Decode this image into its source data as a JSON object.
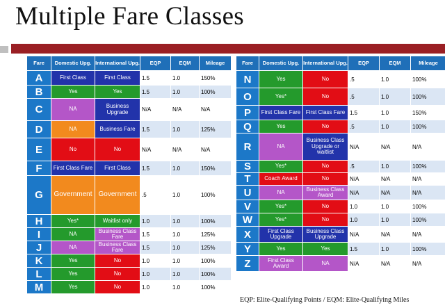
{
  "slide_title": "Multiple Fare Classes",
  "headers": [
    "Fare",
    "Domestic Upg.",
    "International Upg.",
    "EQP",
    "EQM",
    "Mileage"
  ],
  "colors": {
    "blue": "#2233aa",
    "green": "#249a2c",
    "red": "#e20d15",
    "purple": "#b456c8",
    "orange": "#f28a1e",
    "header": "#1f6fb8"
  },
  "left_rows": [
    {
      "fare": "A",
      "dom": "First Class",
      "dc": "blue",
      "intl": "First Class",
      "ic": "blue",
      "eqp": "1.5",
      "eqm": "1.0",
      "mileage": "150%"
    },
    {
      "fare": "B",
      "dom": "Yes",
      "dc": "green",
      "intl": "Yes",
      "ic": "green",
      "eqp": "1.5",
      "eqm": "1.0",
      "mileage": "100%"
    },
    {
      "fare": "C",
      "dom": "NA",
      "dc": "purple",
      "intl": "Business Upgrade",
      "ic": "blue",
      "eqp": "N/A",
      "eqm": "N/A",
      "mileage": "N/A"
    },
    {
      "fare": "D",
      "dom": "NA",
      "dc": "orange",
      "intl": "Business Fare",
      "ic": "blue",
      "eqp": "1.5",
      "eqm": "1.0",
      "mileage": "125%"
    },
    {
      "fare": "E",
      "dom": "No",
      "dc": "red",
      "intl": "No",
      "ic": "red",
      "eqp": "N/A",
      "eqm": "N/A",
      "mileage": "N/A"
    },
    {
      "fare": "F",
      "dom": "First Class Fare",
      "dc": "blue",
      "intl": "First Class",
      "ic": "blue",
      "eqp": "1.5",
      "eqm": "1.0",
      "mileage": "150%"
    },
    {
      "fare": "G",
      "dom": "Government",
      "dc": "orange",
      "intl": "Government",
      "ic": "orange",
      "eqp": ".5",
      "eqm": "1.0",
      "mileage": "100%"
    },
    {
      "fare": "H",
      "dom": "Yes*",
      "dc": "green",
      "intl": "Waitlist only",
      "ic": "green",
      "eqp": "1.0",
      "eqm": "1.0",
      "mileage": "100%"
    },
    {
      "fare": "I",
      "dom": "NA",
      "dc": "green",
      "intl": "Business Class Fare",
      "ic": "purple",
      "eqp": "1.5",
      "eqm": "1.0",
      "mileage": "125%"
    },
    {
      "fare": "J",
      "dom": "NA",
      "dc": "purple",
      "intl": "Business Class Fare",
      "ic": "purple",
      "eqp": "1.5",
      "eqm": "1.0",
      "mileage": "125%"
    },
    {
      "fare": "K",
      "dom": "Yes",
      "dc": "green",
      "intl": "No",
      "ic": "red",
      "eqp": "1.0",
      "eqm": "1.0",
      "mileage": "100%"
    },
    {
      "fare": "L",
      "dom": "Yes",
      "dc": "green",
      "intl": "No",
      "ic": "red",
      "eqp": "1.0",
      "eqm": "1.0",
      "mileage": "100%"
    },
    {
      "fare": "M",
      "dom": "Yes",
      "dc": "green",
      "intl": "No",
      "ic": "red",
      "eqp": "1.0",
      "eqm": "1.0",
      "mileage": "100%"
    }
  ],
  "right_rows": [
    {
      "fare": "N",
      "dom": "Yes",
      "dc": "green",
      "intl": "No",
      "ic": "red",
      "eqp": ".5",
      "eqm": "1.0",
      "mileage": "100%"
    },
    {
      "fare": "O",
      "dom": "Yes*",
      "dc": "green",
      "intl": "No",
      "ic": "red",
      "eqp": ".5",
      "eqm": "1.0",
      "mileage": "100%"
    },
    {
      "fare": "P",
      "dom": "First Class Fare",
      "dc": "blue",
      "intl": "First Class Fare",
      "ic": "blue",
      "eqp": "1.5",
      "eqm": "1.0",
      "mileage": "150%"
    },
    {
      "fare": "Q",
      "dom": "Yes",
      "dc": "green",
      "intl": "No",
      "ic": "red",
      "eqp": ".5",
      "eqm": "1.0",
      "mileage": "100%"
    },
    {
      "fare": "R",
      "dom": "NA",
      "dc": "purple",
      "intl": "Business Class Upgrade or waitlist",
      "ic": "blue",
      "eqp": "N/A",
      "eqm": "N/A",
      "mileage": "N/A"
    },
    {
      "fare": "S",
      "dom": "Yes*",
      "dc": "green",
      "intl": "No",
      "ic": "red",
      "eqp": ".5",
      "eqm": "1.0",
      "mileage": "100%"
    },
    {
      "fare": "T",
      "dom": "Coach Award",
      "dc": "red",
      "intl": "No",
      "ic": "red",
      "eqp": "N/A",
      "eqm": "N/A",
      "mileage": "N/A"
    },
    {
      "fare": "U",
      "dom": "NA",
      "dc": "purple",
      "intl": "Business Class Award",
      "ic": "purple",
      "eqp": "N/A",
      "eqm": "N/A",
      "mileage": "N/A"
    },
    {
      "fare": "V",
      "dom": "Yes*",
      "dc": "green",
      "intl": "No",
      "ic": "red",
      "eqp": "1.0",
      "eqm": "1.0",
      "mileage": "100%"
    },
    {
      "fare": "W",
      "dom": "Yes*",
      "dc": "green",
      "intl": "No",
      "ic": "red",
      "eqp": "1.0",
      "eqm": "1.0",
      "mileage": "100%"
    },
    {
      "fare": "X",
      "dom": "First Class Upgrade",
      "dc": "blue",
      "intl": "Business Class Upgrade",
      "ic": "blue",
      "eqp": "N/A",
      "eqm": "N/A",
      "mileage": "N/A"
    },
    {
      "fare": "Y",
      "dom": "Yes",
      "dc": "green",
      "intl": "Yes",
      "ic": "green",
      "eqp": "1.5",
      "eqm": "1.0",
      "mileage": "100%"
    },
    {
      "fare": "Z",
      "dom": "First Class Award",
      "dc": "purple",
      "intl": "NA",
      "ic": "purple",
      "eqp": "N/A",
      "eqm": "N/A",
      "mileage": "N/A"
    }
  ],
  "footer": "EQP: Elite-Qualifying Points / EQM: Elite-Qualifying Miles"
}
